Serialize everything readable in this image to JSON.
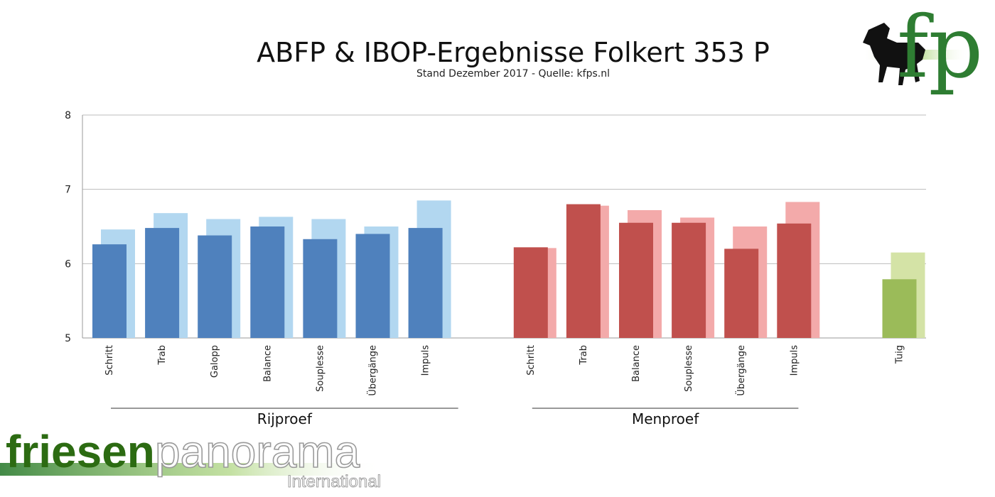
{
  "brand": {
    "logo_text": "fp",
    "name_part1": "friesen",
    "name_part2": "panorama",
    "name_part3": "International"
  },
  "colors": {
    "rijproef_dark": "#4f81bd",
    "rijproef_light": "#b2d7f0",
    "menproef_dark": "#c0504d",
    "menproef_light": "#f3aaaa",
    "tuig_dark": "#9bbb59",
    "tuig_light": "#d4e3a6",
    "brand_green": "#2e7d32"
  },
  "chart_data": {
    "type": "bar",
    "title": "ABFP & IBOP-Ergebnisse Folkert 353 P",
    "subtitle": "Stand Dezember 2017 - Quelle: kfps.nl",
    "xlabel": "",
    "ylabel": "",
    "ylim": [
      5,
      8
    ],
    "yticks": [
      5,
      6,
      7,
      8
    ],
    "grid": true,
    "legend": "none",
    "groups": [
      {
        "name": "Rijproef",
        "categories": [
          "Schritt",
          "Trab",
          "Galopp",
          "Balance",
          "Souplesse",
          "Übergänge",
          "Impuls"
        ],
        "front_values": [
          6.26,
          6.48,
          6.38,
          6.5,
          6.33,
          6.4,
          6.48
        ],
        "back_values": [
          6.46,
          6.68,
          6.6,
          6.63,
          6.6,
          6.5,
          6.85
        ]
      },
      {
        "name": "Menproef",
        "categories": [
          "Schritt",
          "Trab",
          "Balance",
          "Souplesse",
          "Übergänge",
          "Impuls"
        ],
        "front_values": [
          6.22,
          6.8,
          6.55,
          6.55,
          6.2,
          6.54
        ],
        "back_values": [
          6.21,
          6.78,
          6.72,
          6.62,
          6.5,
          6.83
        ]
      },
      {
        "name": "",
        "categories": [
          "Tuig"
        ],
        "front_values": [
          5.79
        ],
        "back_values": [
          6.15
        ]
      }
    ]
  }
}
